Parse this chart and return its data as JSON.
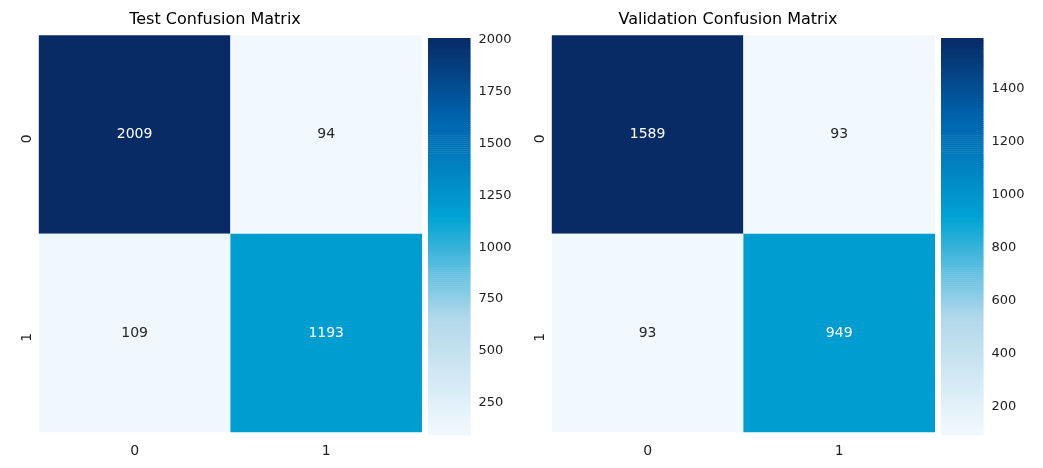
{
  "chart_data": [
    {
      "type": "heatmap",
      "title": "Test Confusion Matrix",
      "categories": [
        "0",
        "1"
      ],
      "y_categories": [
        "0",
        "1"
      ],
      "cells": [
        [
          2009,
          94
        ],
        [
          109,
          1193
        ]
      ],
      "clim": [
        94,
        2009
      ],
      "cticks": [
        250,
        500,
        750,
        1000,
        1250,
        1500,
        1750,
        2000
      ],
      "data_labels": true
    },
    {
      "type": "heatmap",
      "title": "Validation Confusion Matrix",
      "categories": [
        "0",
        "1"
      ],
      "y_categories": [
        "0",
        "1"
      ],
      "cells": [
        [
          1589,
          93
        ],
        [
          93,
          949
        ]
      ],
      "clim": [
        93,
        1589
      ],
      "cticks": [
        200,
        400,
        600,
        800,
        1000,
        1200,
        1400
      ],
      "data_labels": true
    }
  ]
}
